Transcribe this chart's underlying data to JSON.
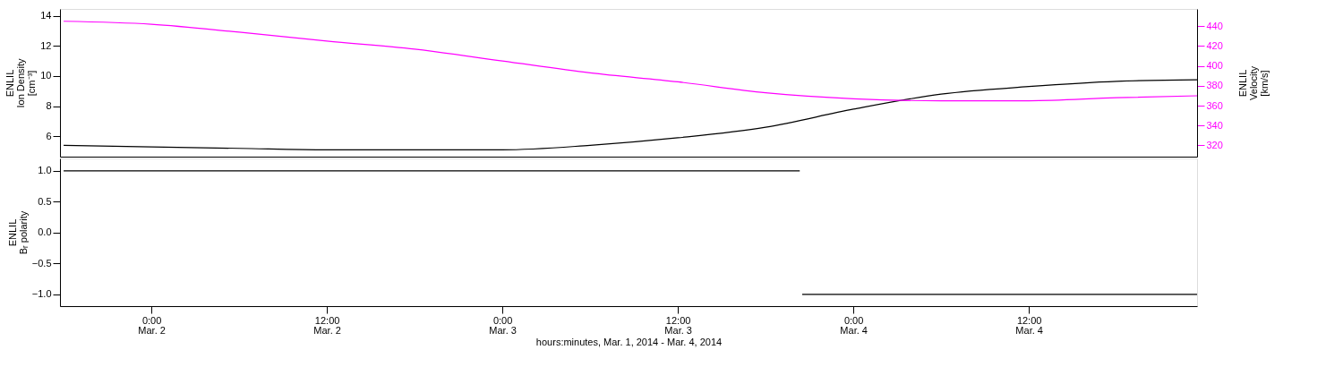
{
  "chart_data": [
    {
      "type": "line",
      "ylabel": "ENLIL\nIon Density\n[cm⁻³]",
      "y2label": "ENLIL\nVelocity\n[km/s]",
      "x": [
        "2014-03-01T18:00",
        "2014-03-02T00:00",
        "2014-03-02T06:00",
        "2014-03-02T12:00",
        "2014-03-02T18:00",
        "2014-03-03T00:00",
        "2014-03-03T06:00",
        "2014-03-03T12:00",
        "2014-03-03T18:00",
        "2014-03-04T00:00",
        "2014-03-04T06:00",
        "2014-03-04T12:00",
        "2014-03-04T18:00",
        "2014-03-04T23:30"
      ],
      "series": [
        {
          "color": "#000000",
          "values": [
            5.4,
            5.3,
            5.2,
            5.1,
            5.1,
            5.1,
            5.4,
            5.9,
            6.6,
            7.8,
            8.8,
            9.3,
            9.65,
            9.75
          ]
        },
        {
          "color": "#ff00ff",
          "axis": "y2",
          "values": [
            445,
            442,
            434,
            425,
            417,
            405,
            393,
            384,
            373,
            367,
            365,
            365,
            368,
            370
          ]
        }
      ],
      "xlim": [
        "2014-03-01T17:45",
        "2014-03-04T23:30"
      ],
      "ylim": [
        4.65,
        14.45
      ],
      "yticks": [
        6,
        8,
        10,
        12,
        14
      ],
      "y2lim": [
        308.7,
        457.4
      ],
      "y2ticks": [
        320,
        340,
        360,
        380,
        400,
        420,
        440
      ],
      "tick_labels": "y",
      "grid": false
    },
    {
      "type": "line",
      "ylabel": "ENLIL\nBᵣ polarity",
      "xlabel": "hours:minutes, Mar.  1, 2014 - Mar.  4, 2014",
      "x": [
        "2014-03-01T18:00",
        "2014-03-03T20:20",
        "2014-03-03T20:25",
        "2014-03-03T20:30",
        "2014-03-04T23:30"
      ],
      "series": [
        {
          "color": "#000000",
          "values": [
            1,
            1,
            null,
            -1,
            -1
          ]
        }
      ],
      "xlim": [
        "2014-03-01T17:45",
        "2014-03-04T23:30"
      ],
      "xticks": [
        {
          "value": "2014-03-02T00:00",
          "label": "0:00\nMar. 2"
        },
        {
          "value": "2014-03-02T12:00",
          "label": "12:00\nMar. 2"
        },
        {
          "value": "2014-03-03T00:00",
          "label": "0:00\nMar. 3"
        },
        {
          "value": "2014-03-03T12:00",
          "label": "12:00\nMar. 3"
        },
        {
          "value": "2014-03-04T00:00",
          "label": "0:00\nMar. 4"
        },
        {
          "value": "2014-03-04T12:00",
          "label": "12:00\nMar. 4"
        }
      ],
      "ylim": [
        -1.19,
        1.2
      ],
      "yticks": [
        {
          "value": 1,
          "label": "1.0"
        },
        {
          "value": 0.5,
          "label": "0.5"
        },
        {
          "value": 0,
          "label": "0.0"
        },
        {
          "value": -0.5,
          "label": "−0.5"
        },
        {
          "value": -1,
          "label": "−1.0"
        }
      ],
      "grid": false
    }
  ]
}
